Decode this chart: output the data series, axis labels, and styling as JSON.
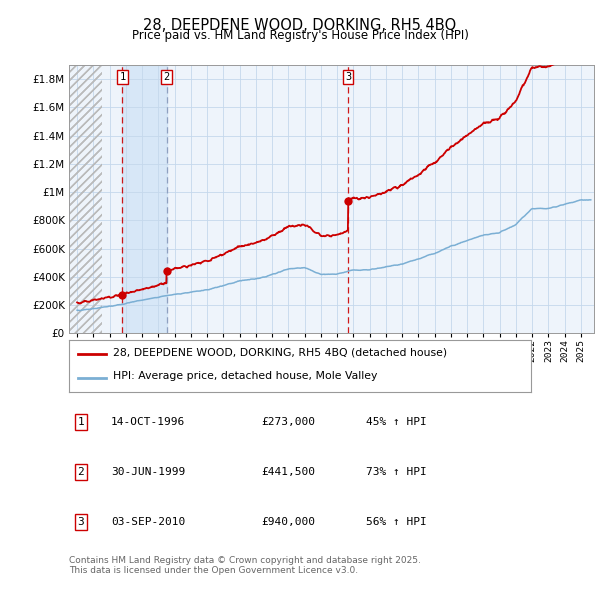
{
  "title": "28, DEEPDENE WOOD, DORKING, RH5 4BQ",
  "subtitle": "Price paid vs. HM Land Registry's House Price Index (HPI)",
  "ytick_values": [
    0,
    200000,
    400000,
    600000,
    800000,
    1000000,
    1200000,
    1400000,
    1600000,
    1800000
  ],
  "ylim": [
    0,
    1900000
  ],
  "xlim_start": 1993.5,
  "xlim_end": 2025.8,
  "sale1_date": 1996.79,
  "sale1_price": 273000,
  "sale2_date": 1999.5,
  "sale2_price": 441500,
  "sale3_date": 2010.67,
  "sale3_price": 940000,
  "legend_line1": "28, DEEPDENE WOOD, DORKING, RH5 4BQ (detached house)",
  "legend_line2": "HPI: Average price, detached house, Mole Valley",
  "table_rows": [
    {
      "num": "1",
      "date": "14-OCT-1996",
      "price": "£273,000",
      "pct": "45% ↑ HPI"
    },
    {
      "num": "2",
      "date": "30-JUN-1999",
      "price": "£441,500",
      "pct": "73% ↑ HPI"
    },
    {
      "num": "3",
      "date": "03-SEP-2010",
      "price": "£940,000",
      "pct": "56% ↑ HPI"
    }
  ],
  "footnote": "Contains HM Land Registry data © Crown copyright and database right 2025.\nThis data is licensed under the Open Government Licence v3.0.",
  "hpi_color": "#7bafd4",
  "property_color": "#cc0000",
  "vline1_color": "#cc0000",
  "vline2_color": "#8888cc",
  "vline3_color": "#cc0000",
  "shade_color": "#ddeeff",
  "chart_bg": "#eef4fb"
}
